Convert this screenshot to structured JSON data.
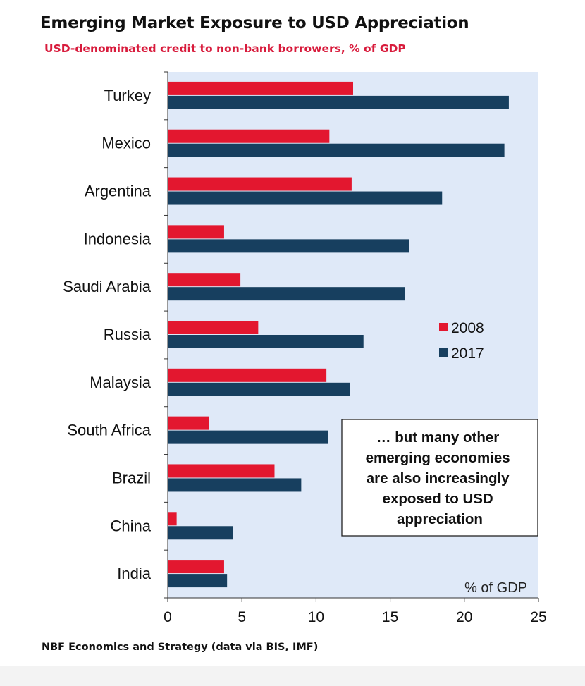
{
  "header": {
    "title": "Emerging Market Exposure to USD Appreciation",
    "subtitle": "USD-denominated credit to non-bank borrowers, % of GDP"
  },
  "footer": {
    "source": "NBF Economics and Strategy (data via BIS, IMF)"
  },
  "colors": {
    "series_2008": "#e3172f",
    "series_2017": "#173f5f",
    "plot_bg": "#dfe9f8"
  },
  "chart_data": {
    "type": "bar",
    "orientation": "horizontal",
    "categories": [
      "Turkey",
      "Mexico",
      "Argentina",
      "Indonesia",
      "Saudi Arabia",
      "Russia",
      "Malaysia",
      "South Africa",
      "Brazil",
      "China",
      "India"
    ],
    "series": [
      {
        "name": "2008",
        "values": [
          12.5,
          10.9,
          12.4,
          3.8,
          4.9,
          6.1,
          10.7,
          2.8,
          7.2,
          0.6,
          3.8
        ]
      },
      {
        "name": "2017",
        "values": [
          23.0,
          22.7,
          18.5,
          16.3,
          16.0,
          13.2,
          12.3,
          10.8,
          9.0,
          4.4,
          4.0
        ]
      }
    ],
    "xlim": [
      0,
      25
    ],
    "xticks": [
      0,
      5,
      10,
      15,
      20,
      25
    ],
    "unit_label": "% of GDP",
    "legend": {
      "position": "right"
    },
    "annotation": "… but many other emerging economies are also increasingly exposed to USD appreciation",
    "grid": false
  }
}
